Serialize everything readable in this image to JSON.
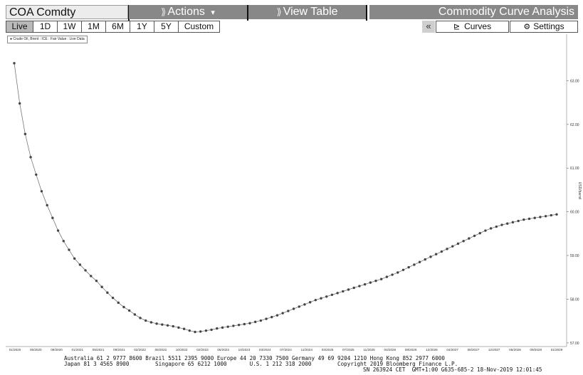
{
  "header": {
    "ticker": "COA Comdty",
    "actions_label": "Actions",
    "actions_caret": "▾",
    "view_table_label": "View Table",
    "title": "Commodity Curve Analysis"
  },
  "tabs": {
    "ranges": [
      "Live",
      "1D",
      "1W",
      "1M",
      "6M",
      "1Y",
      "5Y",
      "Custom"
    ],
    "active": "Live"
  },
  "toolbar_right": {
    "collapse_label": "«",
    "curves_label": "Curves",
    "settings_label": "Settings"
  },
  "chart_data": {
    "type": "line",
    "legend": "● Crude Oil, Brent : ICE : Fair Value : Live Data",
    "ylabel": "USD/barrel",
    "y_ticks": [
      "57.00",
      "58.00",
      "59.00",
      "60.00",
      "61.00",
      "62.00",
      "63.00"
    ],
    "ylim": [
      56.9,
      64.0
    ],
    "x_ticks": [
      "01/2020",
      "05/2020",
      "09/2020",
      "01/2021",
      "05/2021",
      "09/2021",
      "02/2022",
      "06/2022",
      "10/2022",
      "02/2023",
      "06/2023",
      "10/2023",
      "03/2024",
      "07/2024",
      "11/2024",
      "03/2025",
      "07/2025",
      "11/2025",
      "04/2026",
      "08/2026",
      "12/2026",
      "04/2027",
      "08/2027",
      "12/2027",
      "05/2028",
      "09/2028",
      "01/2029"
    ],
    "series": [
      {
        "values": [
          63.4,
          62.48,
          61.78,
          61.25,
          60.85,
          60.47,
          60.15,
          59.86,
          59.57,
          59.33,
          59.13,
          58.93,
          58.79,
          58.66,
          58.53,
          58.42,
          58.28,
          58.15,
          58.03,
          57.92,
          57.82,
          57.74,
          57.65,
          57.57,
          57.51,
          57.47,
          57.44,
          57.42,
          57.4,
          57.38,
          57.35,
          57.32,
          57.28,
          57.25,
          57.26,
          57.28,
          57.3,
          57.33,
          57.35,
          57.37,
          57.39,
          57.41,
          57.43,
          57.45,
          57.48,
          57.51,
          57.55,
          57.59,
          57.63,
          57.68,
          57.73,
          57.78,
          57.83,
          57.88,
          57.93,
          57.98,
          58.02,
          58.06,
          58.1,
          58.14,
          58.18,
          58.22,
          58.26,
          58.3,
          58.34,
          58.38,
          58.42,
          58.46,
          58.51,
          58.56,
          58.61,
          58.67,
          58.73,
          58.79,
          58.85,
          58.91,
          58.97,
          59.03,
          59.09,
          59.15,
          59.21,
          59.27,
          59.33,
          59.39,
          59.45,
          59.51,
          59.57,
          59.62,
          59.66,
          59.7,
          59.73,
          59.76,
          59.79,
          59.82,
          59.84,
          59.86,
          59.88,
          59.9,
          59.92,
          59.94
        ]
      }
    ]
  },
  "footer": {
    "line1": "Australia 61 2 9777 8600 Brazil 5511 2395 9000 Europe 44 20 7330 7500 Germany 49 69 9204 1210 Hong Kong 852 2977 6000",
    "line2": "Japan 81 3 4565 8900        Singapore 65 6212 1000       U.S. 1 212 318 2000        Copyright 2019 Bloomberg Finance L.P.",
    "line3": "SN 263924 CET  GMT+1:00 G635-685-2 18-Nov-2019 12:01:45"
  }
}
